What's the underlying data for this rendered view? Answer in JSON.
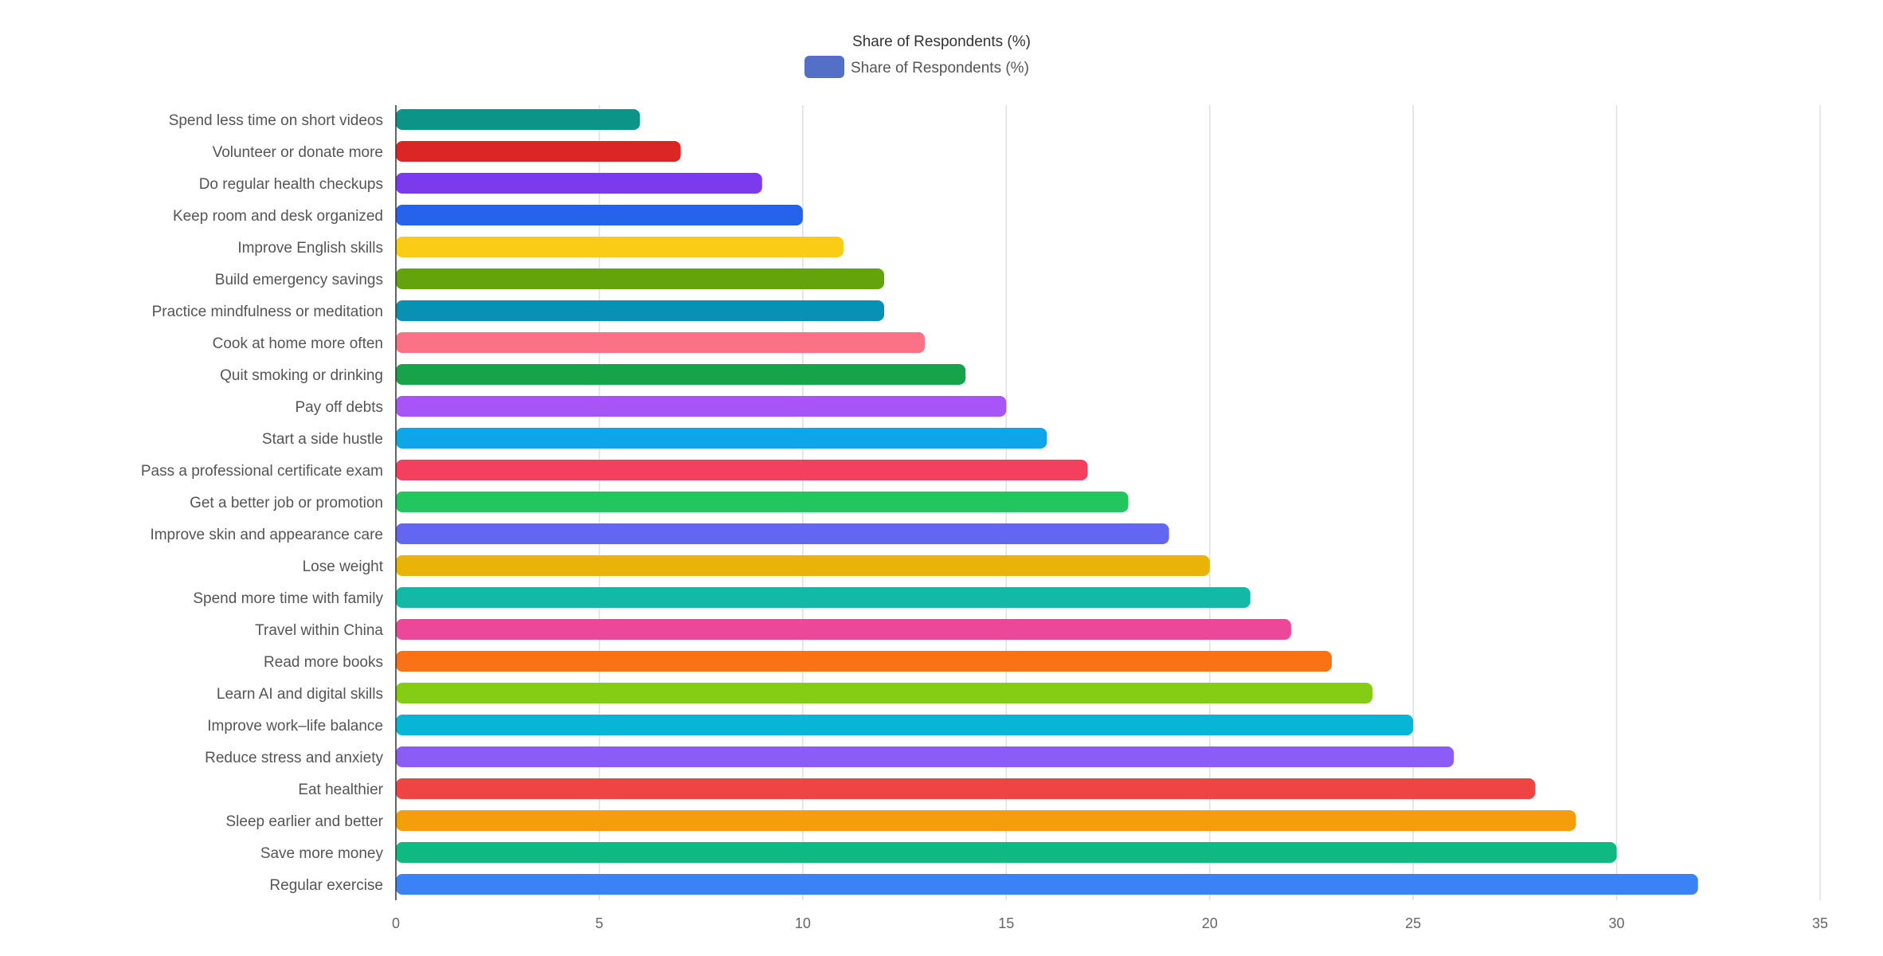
{
  "chart_data": {
    "type": "bar",
    "orientation": "horizontal",
    "title": "Share of Respondents (%)",
    "legend": [
      {
        "label": "Share of Respondents (%)",
        "color": "#5470c6"
      }
    ],
    "legend_position": "top-center",
    "xlabel": "",
    "ylabel": "",
    "xlim": [
      0,
      35
    ],
    "xticks": [
      0,
      5,
      10,
      15,
      20,
      25,
      30,
      35
    ],
    "grid": true,
    "categories": [
      "Spend less time on short videos",
      "Volunteer or donate more",
      "Do regular health checkups",
      "Keep room and desk organized",
      "Improve English skills",
      "Build emergency savings",
      "Practice mindfulness or meditation",
      "Cook at home more often",
      "Quit smoking or drinking",
      "Pay off debts",
      "Start a side hustle",
      "Pass a professional certificate exam",
      "Get a better job or promotion",
      "Improve skin and appearance care",
      "Lose weight",
      "Spend more time with family",
      "Travel within China",
      "Read more books",
      "Learn AI and digital skills",
      "Improve work–life balance",
      "Reduce stress and anxiety",
      "Eat healthier",
      "Sleep earlier and better",
      "Save more money",
      "Regular exercise"
    ],
    "values": [
      6,
      7,
      9,
      10,
      11,
      12,
      12,
      13,
      14,
      15,
      16,
      17,
      18,
      19,
      20,
      21,
      22,
      23,
      24,
      25,
      26,
      28,
      29,
      30,
      32
    ],
    "colors": [
      "#0d9488",
      "#dc2626",
      "#7c3aed",
      "#2563eb",
      "#facc15",
      "#65a30d",
      "#0891b2",
      "#fb7185",
      "#16a34a",
      "#a855f7",
      "#0ea5e9",
      "#f43f5e",
      "#22c55e",
      "#6366f1",
      "#eab308",
      "#14b8a6",
      "#ec4899",
      "#f97316",
      "#84cc16",
      "#06b6d4",
      "#8b5cf6",
      "#ef4444",
      "#f59e0b",
      "#10b981",
      "#3b82f6"
    ]
  }
}
